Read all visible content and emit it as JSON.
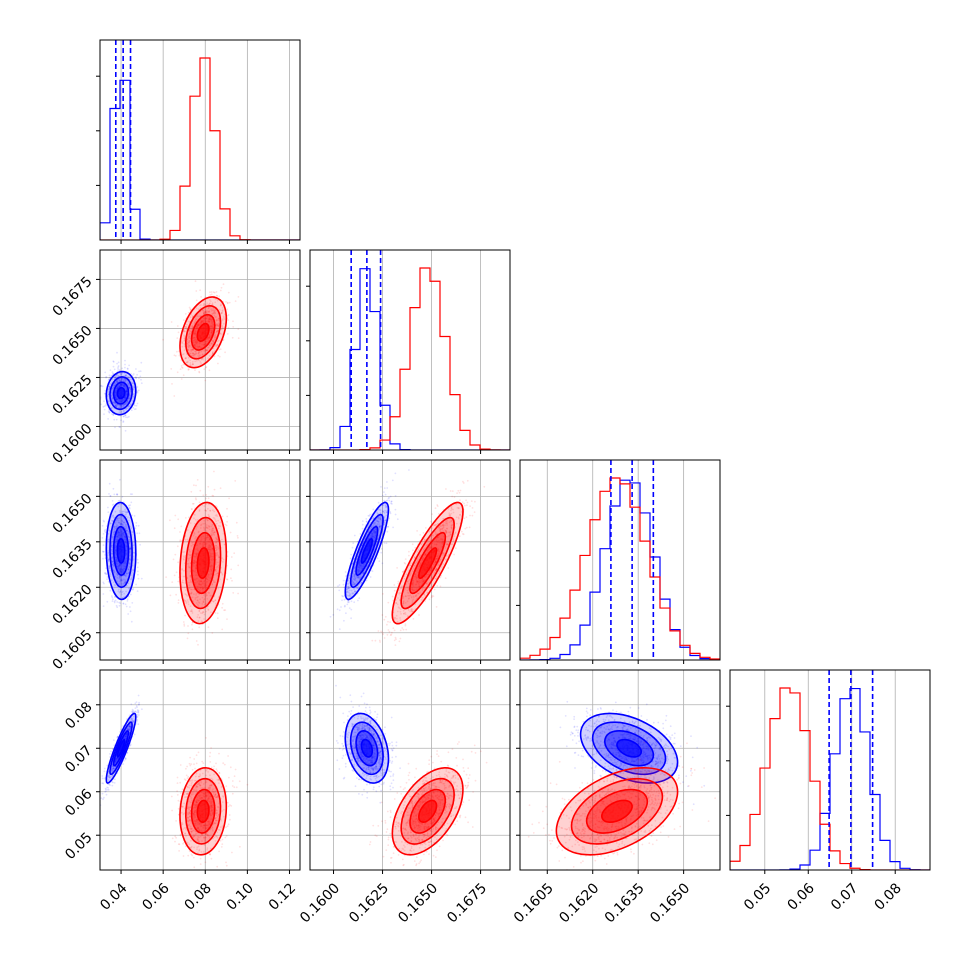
{
  "colors": {
    "blue": "#0000ff",
    "red": "#ff0000",
    "grid": "#b0b0b0"
  },
  "chart_data": {
    "type": "corner",
    "grid": true,
    "legend": "none",
    "parameters": [
      {
        "range": [
          0.03,
          0.125
        ],
        "ticks": [
          0.04,
          0.06,
          0.08,
          0.1,
          0.12
        ],
        "tick_labels": [
          "0.04",
          "0.06",
          "0.08",
          "0.10",
          "0.12"
        ]
      },
      {
        "range": [
          0.1588,
          0.169
        ],
        "ticks": [
          0.16,
          0.1625,
          0.165,
          0.1675
        ],
        "tick_labels": [
          "0.1600",
          "0.1625",
          "0.1650",
          "0.1675"
        ]
      },
      {
        "range": [
          0.1596,
          0.1662
        ],
        "ticks": [
          0.1605,
          0.162,
          0.1635,
          0.165
        ],
        "tick_labels": [
          "0.1605",
          "0.1620",
          "0.1635",
          "0.1650"
        ]
      },
      {
        "range": [
          0.042,
          0.088
        ],
        "ticks": [
          0.05,
          0.06,
          0.07,
          0.08
        ],
        "tick_labels": [
          "0.05",
          "0.06",
          "0.07",
          "0.08"
        ]
      }
    ],
    "series": [
      {
        "color": "blue",
        "mean": [
          0.04,
          0.1617,
          0.1632,
          0.07
        ],
        "std": [
          0.0035,
          0.00055,
          0.0008,
          0.004
        ],
        "quantiles": [
          [
            0.0375,
            0.041,
            0.0445
          ],
          [
            0.1609,
            0.1617,
            0.1624
          ],
          [
            0.1626,
            0.1633,
            0.164
          ],
          [
            0.0648,
            0.0698,
            0.0748
          ]
        ],
        "correlations": {
          "1-0": 0.1,
          "2-0": -0.05,
          "2-1": 0.85,
          "3-0": 0.9,
          "3-1": -0.3,
          "3-2": -0.4
        }
      },
      {
        "color": "red",
        "mean": [
          0.079,
          0.1648,
          0.1628,
          0.0555
        ],
        "std": [
          0.0055,
          0.0009,
          0.001,
          0.005
        ],
        "correlations": {
          "1-0": 0.4,
          "2-0": 0.15,
          "2-1": 0.85,
          "3-0": 0.1,
          "3-1": 0.5,
          "3-2": 0.45
        }
      }
    ]
  }
}
